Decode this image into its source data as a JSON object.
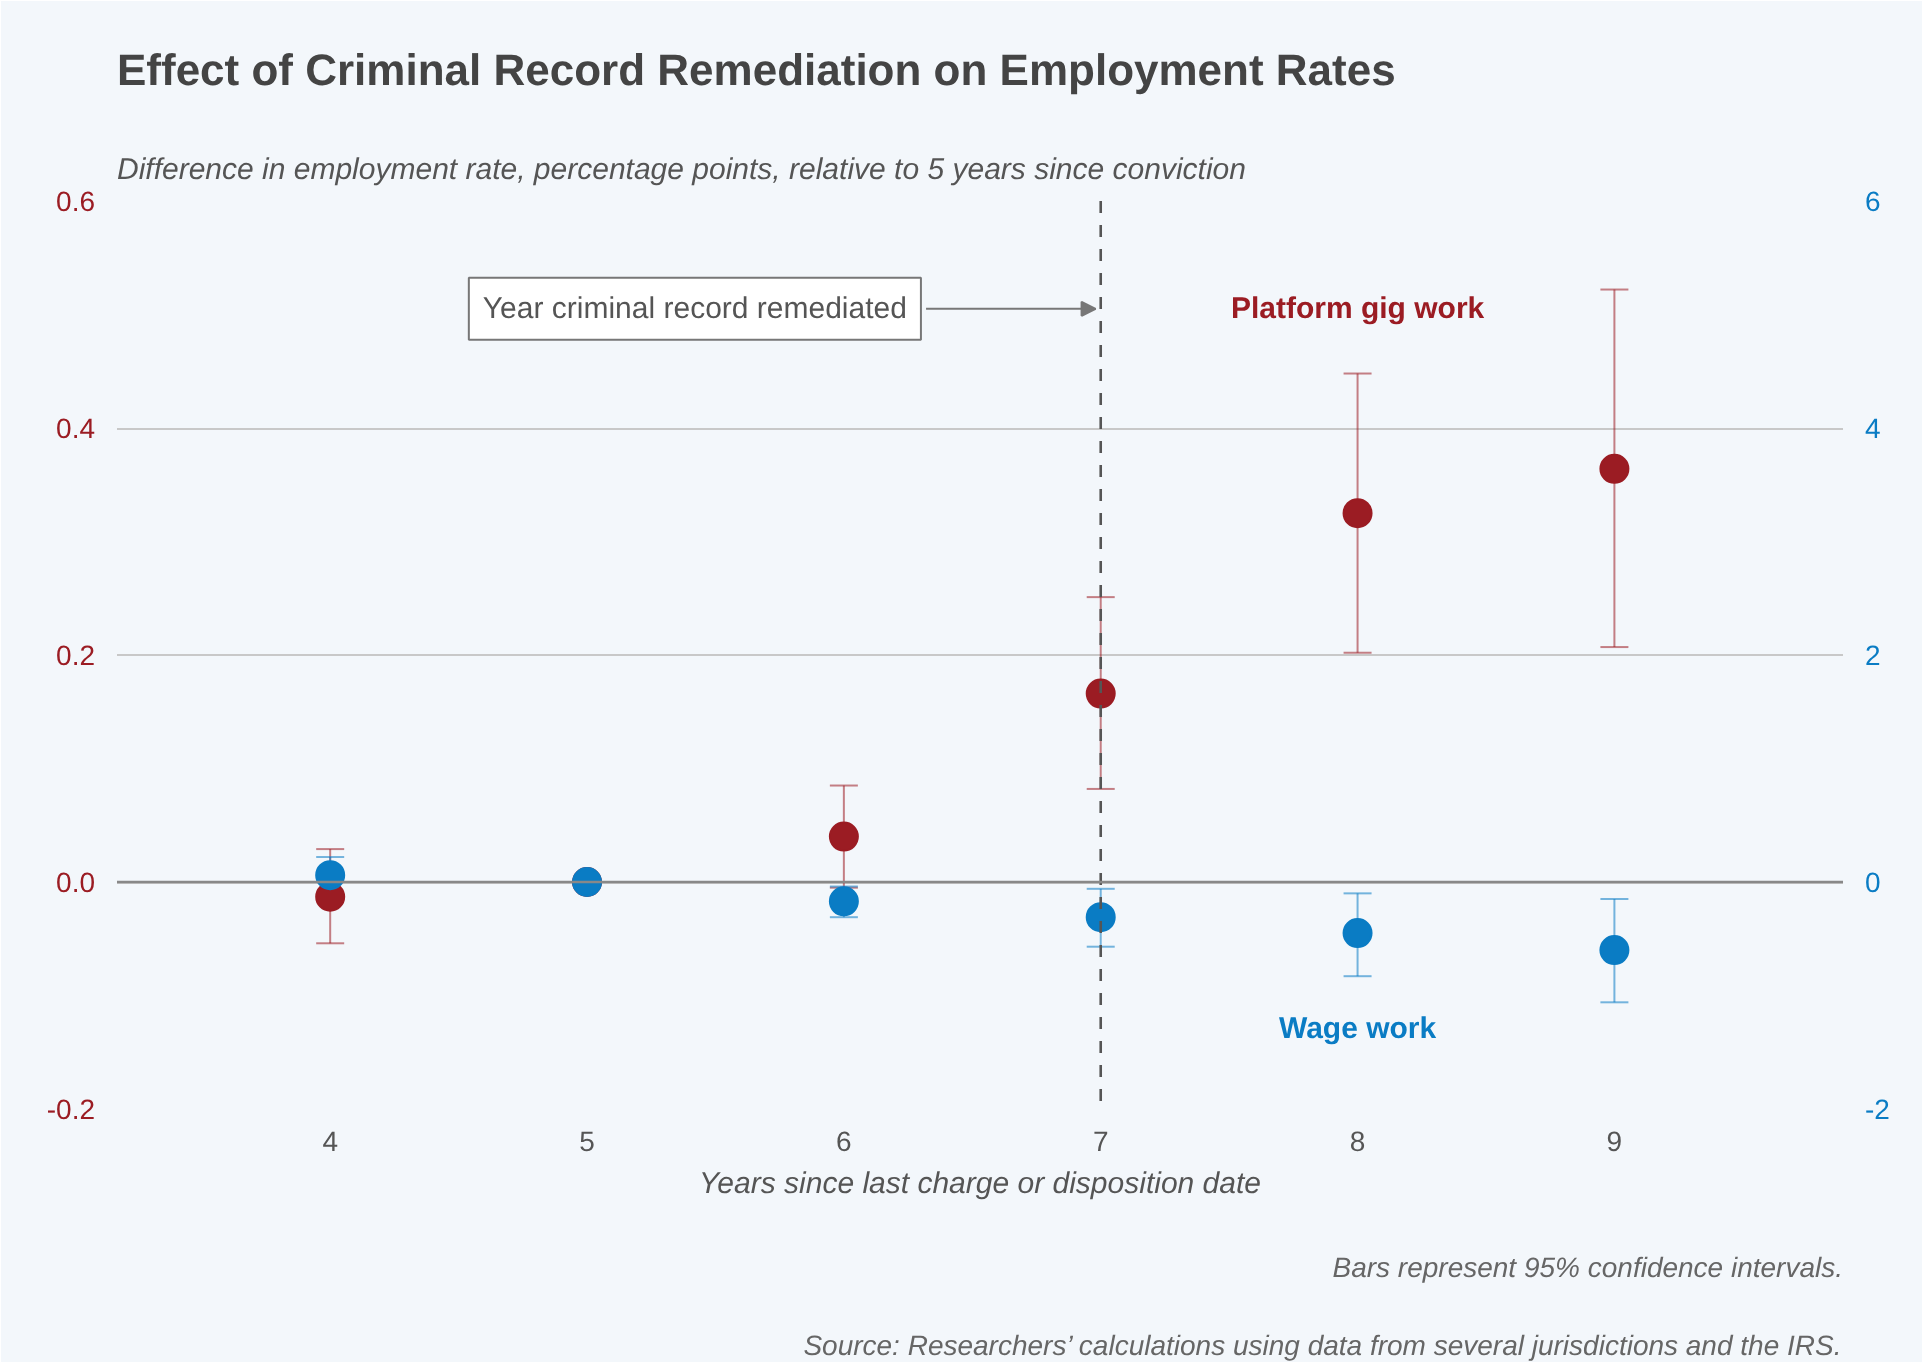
{
  "chart_data": {
    "type": "scatter",
    "title": "Effect of Criminal Record Remediation on Employment Rates",
    "ylabel": "Difference in employment rate, percentage points, relative to 5 years since conviction",
    "xlabel": "Years since last charge or disposition date",
    "x": [
      4,
      5,
      6,
      7,
      8,
      9
    ],
    "series": [
      {
        "name": "Platform gig work",
        "color": "#9b1c23",
        "values": [
          -0.013,
          0,
          0.04,
          0.166,
          0.325,
          0.364
        ],
        "errors": [
          [
            -0.054,
            0.029
          ],
          null,
          [
            -0.005,
            0.085
          ],
          [
            0.082,
            0.251
          ],
          [
            0.202,
            0.448
          ],
          [
            0.207,
            0.522
          ]
        ]
      },
      {
        "name": "Wage work",
        "color": "#0a7cc4",
        "axis": "y2",
        "values": [
          0.06,
          0,
          -0.17,
          -0.31,
          -0.45,
          -0.6
        ],
        "errors": [
          [
            -0.11,
            0.22
          ],
          null,
          [
            -0.31,
            -0.04
          ],
          [
            -0.57,
            -0.06
          ],
          [
            -0.83,
            -0.1
          ],
          [
            -1.06,
            -0.15
          ]
        ]
      }
    ],
    "xlim": [
      3.17,
      9.89
    ],
    "xticks": [
      4,
      5,
      6,
      7,
      8,
      9
    ],
    "ylim": [
      -0.2,
      0.6
    ],
    "yticks": [
      {
        "value": -0.2,
        "label": "-0.2"
      },
      {
        "value": 0,
        "label": "0.0"
      },
      {
        "value": 0.2,
        "label": "0.2"
      },
      {
        "value": 0.4,
        "label": "0.4"
      },
      {
        "value": 0.6,
        "label": "0.6"
      }
    ],
    "y2lim": [
      -2,
      6
    ],
    "y2ticks": [
      -2,
      0,
      2,
      4,
      6
    ],
    "ref_lines": [
      {
        "axis": "x",
        "value": 7,
        "line_style": "dashed",
        "color": "#555555"
      },
      {
        "axis": "y",
        "value": 0,
        "color": "#888888"
      }
    ],
    "annotations": [
      {
        "text": "Year criminal record remediated",
        "x": 7,
        "y": 0.505
      },
      "Bars represent 95% confidence intervals.",
      "Source: Researchers’ calculations using data from several jurisdictions and the IRS."
    ],
    "grid": "y",
    "marker": "circle"
  }
}
